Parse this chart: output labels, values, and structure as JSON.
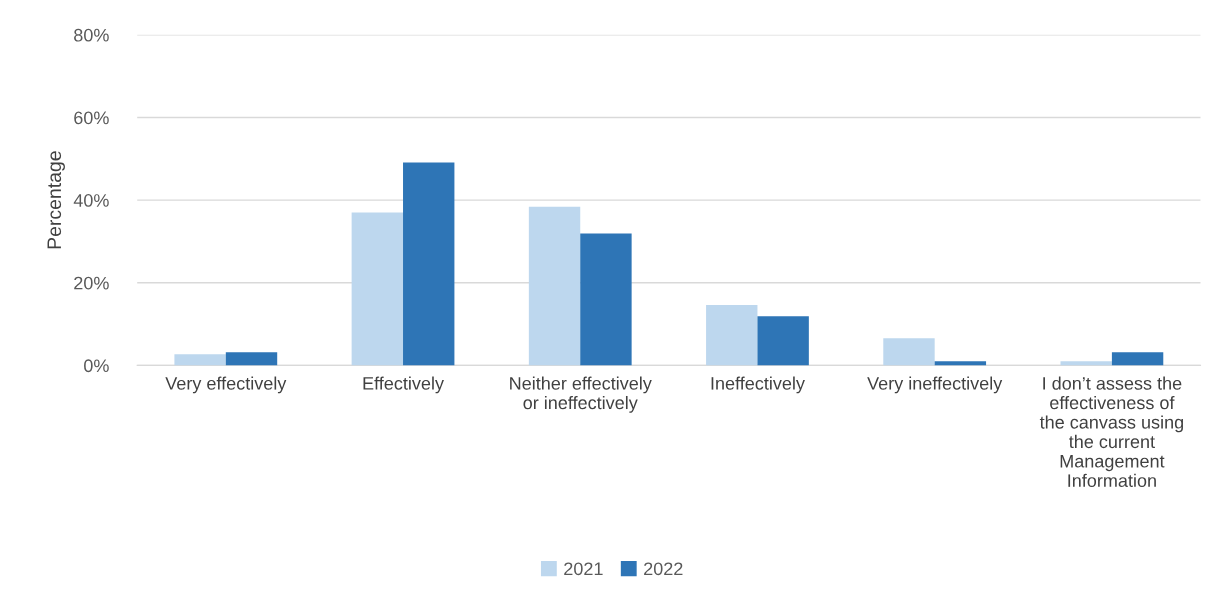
{
  "chart_data": {
    "type": "bar",
    "ylabel": "Percentage",
    "categories": [
      "Very effectively",
      "Effectively",
      "Neither effectively or ineffectively",
      "Ineffectively",
      "Very ineffectively",
      "I don’t assess the effectiveness of the canvass using the current Management Information"
    ],
    "series": [
      {
        "name": "2021",
        "color": "#bdd7ee",
        "values": [
          2.7,
          37,
          38.4,
          14.6,
          6.6,
          1
        ]
      },
      {
        "name": "2022",
        "color": "#2e75b6",
        "values": [
          3.2,
          49.1,
          31.9,
          11.9,
          1,
          3.2
        ]
      }
    ],
    "ylim": [
      0,
      80
    ],
    "yticks": [
      {
        "value": 0,
        "label": "0%"
      },
      {
        "value": 20,
        "label": "20%"
      },
      {
        "value": 40,
        "label": "40%"
      },
      {
        "value": 60,
        "label": "60%"
      },
      {
        "value": 80,
        "label": "80%"
      }
    ],
    "grid": "y",
    "legend": "bottom"
  }
}
